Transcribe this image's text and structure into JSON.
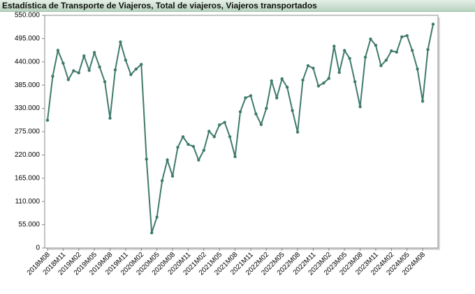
{
  "chart_data": {
    "type": "line",
    "title": "Estadística de Transporte de Viajeros, Total de viajeros, Viajeros transportados",
    "categories": [
      "2018M08",
      null,
      null,
      "2018M11",
      null,
      null,
      "2019M02",
      null,
      null,
      "2019M05",
      null,
      null,
      "2019M08",
      null,
      null,
      "2019M11",
      null,
      null,
      "2020M02",
      null,
      null,
      "2020M05",
      null,
      null,
      "2020M08",
      null,
      null,
      "2020M11",
      null,
      null,
      "2021M02",
      null,
      null,
      "2021M05",
      null,
      null,
      "2021M08",
      null,
      null,
      "2021M11",
      null,
      null,
      "2022M02",
      null,
      null,
      "2022M05",
      null,
      null,
      "2022M08",
      null,
      null,
      "2022M11",
      null,
      null,
      "2023M02",
      null,
      null,
      "2023M05",
      null,
      null,
      "2023M08",
      null,
      null,
      "2023M11",
      null,
      null,
      "2024M02",
      null,
      null,
      "2024M05",
      null,
      null,
      "2024M08",
      null,
      null
    ],
    "series": [
      {
        "name": "Viajeros transportados",
        "color": "#3f7a6c",
        "values": [
          302000,
          406000,
          467000,
          437000,
          398000,
          419000,
          414000,
          454000,
          420000,
          462000,
          428000,
          393000,
          307000,
          421000,
          487000,
          444000,
          410000,
          423000,
          434000,
          210000,
          36000,
          73000,
          159000,
          208000,
          170000,
          238000,
          263000,
          245000,
          240000,
          208000,
          231000,
          276000,
          263000,
          291000,
          297000,
          263000,
          216000,
          322000,
          355000,
          360000,
          317000,
          292000,
          330000,
          395000,
          355000,
          400000,
          380000,
          325000,
          274000,
          397000,
          431000,
          425000,
          383000,
          390000,
          401000,
          477000,
          415000,
          467000,
          448000,
          393000,
          334000,
          451000,
          494000,
          479000,
          431000,
          444000,
          466000,
          463000,
          499000,
          502000,
          467000,
          423000,
          347000,
          469000,
          529000
        ]
      }
    ],
    "ylim": [
      0,
      550000
    ],
    "yticks": [
      0,
      {
        "value": 55000,
        "label": "55.000"
      },
      {
        "value": 110000,
        "label": "110.000"
      },
      {
        "value": 165000,
        "label": "165.000"
      },
      {
        "value": 220000,
        "label": "220.000"
      },
      {
        "value": 275000,
        "label": "275.000"
      },
      {
        "value": 330000,
        "label": "330.000"
      },
      {
        "value": 385000,
        "label": "385.000"
      },
      {
        "value": 440000,
        "label": "440.000"
      },
      {
        "value": 495000,
        "label": "495.000"
      },
      {
        "value": 550000,
        "label": "550.000"
      }
    ]
  }
}
